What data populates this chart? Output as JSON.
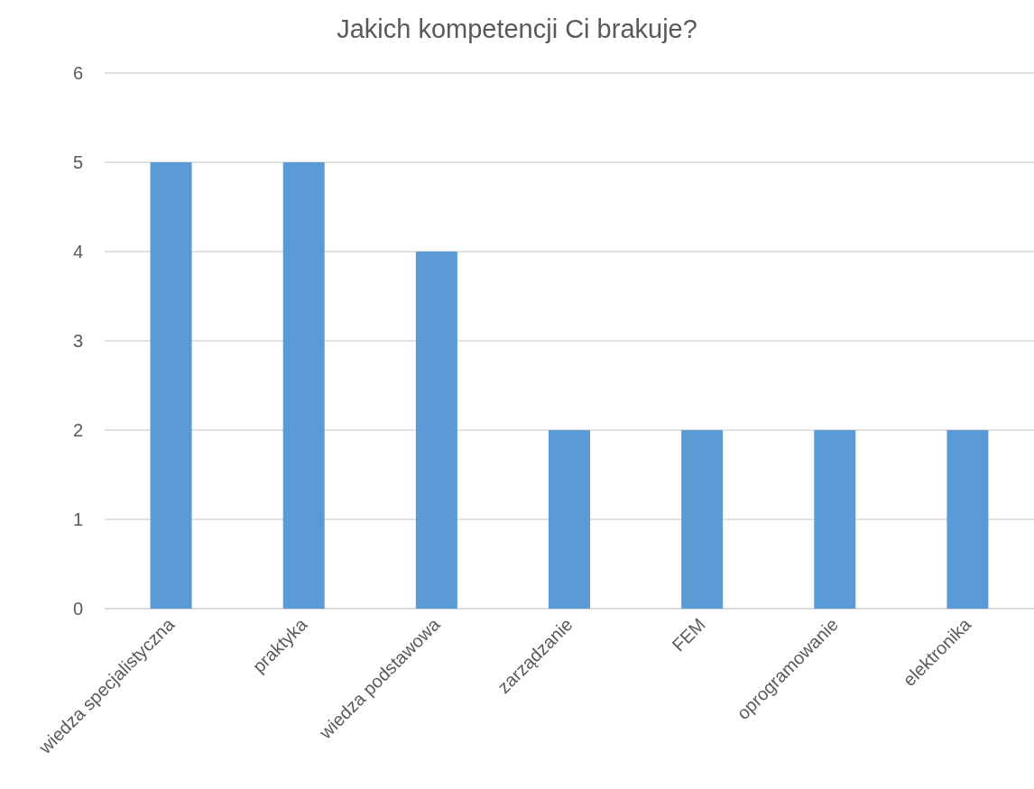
{
  "chart_data": {
    "type": "bar",
    "title": "Jakich kompetencji Ci brakuje?",
    "categories": [
      "wiedza specjalistyczna",
      "praktyka",
      "wiedza podstawowa",
      "zarządzanie",
      "FEM",
      "oprogramowanie",
      "elektronika"
    ],
    "values": [
      5,
      5,
      4,
      2,
      2,
      2,
      2
    ],
    "color": "#5b9bd5",
    "ylim": [
      0,
      6
    ],
    "yticks": [
      0,
      1,
      2,
      3,
      4,
      5,
      6
    ],
    "grid": "y"
  }
}
